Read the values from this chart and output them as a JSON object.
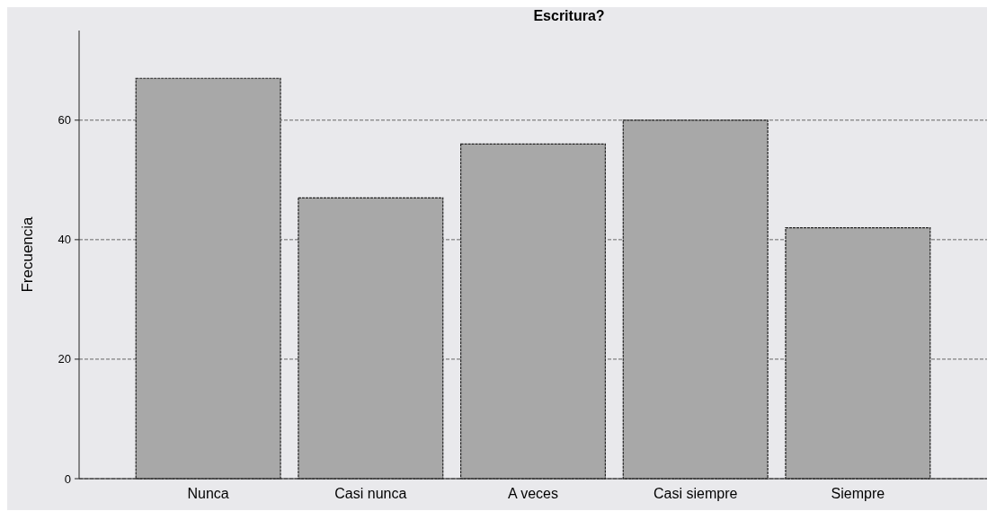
{
  "chart_data": {
    "type": "bar",
    "title": "Escritura?",
    "ylabel": "Frecuencia",
    "categories": [
      "Nunca",
      "Casi nunca",
      "A veces",
      "Casi siempre",
      "Siempre"
    ],
    "values": [
      67,
      47,
      56,
      60,
      42
    ],
    "color": "#a8a8a8",
    "ylim": [
      0,
      75
    ],
    "yticks": [
      0,
      20,
      40,
      60
    ],
    "grid": "y"
  }
}
